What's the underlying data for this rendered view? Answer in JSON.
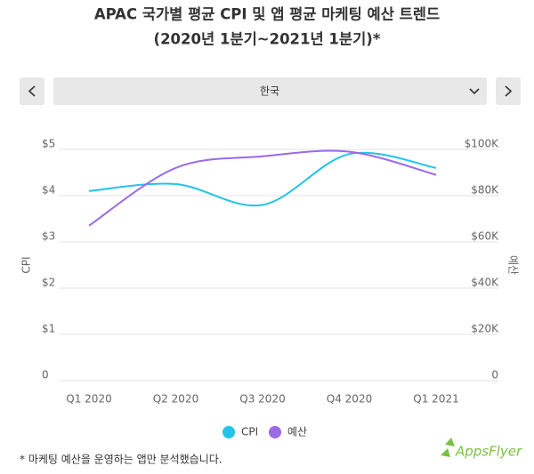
{
  "header": {
    "title": "APAC 국가별 평균 CPI 및 앱 평균 마케팅 예산 트렌드",
    "subtitle": "(2020년 1분기~2021년 1분기)*"
  },
  "selector": {
    "selected": "한국"
  },
  "chart_data": {
    "type": "line",
    "y_label": "CPI",
    "y2_label": "예산",
    "categories": [
      "Q1 2020",
      "Q2 2020",
      "Q3 2020",
      "Q4 2020",
      "Q1 2021"
    ],
    "series": [
      {
        "name": "CPI",
        "color": "#22c4e6",
        "values": [
          4.1,
          4.25,
          3.8,
          4.9,
          4.6
        ]
      },
      {
        "name": "예산",
        "color": "#9b6ae6",
        "axis": "y2",
        "values": [
          67000,
          92000,
          97000,
          99000,
          89000
        ]
      }
    ],
    "ylim": [
      0,
      5
    ],
    "yticks": [
      0,
      {
        "value": 1,
        "label": "$1"
      },
      {
        "value": 2,
        "label": "$2"
      },
      {
        "value": 3,
        "label": "$3"
      },
      {
        "value": 4,
        "label": "$4"
      },
      {
        "value": 5,
        "label": "$5"
      }
    ],
    "y2lim": [
      0,
      100000
    ],
    "y2ticks": [
      0,
      {
        "value": 20000,
        "label": "$20K"
      },
      {
        "value": 40000,
        "label": "$40K"
      },
      {
        "value": 60000,
        "label": "$60K"
      },
      {
        "value": 80000,
        "label": "$80K"
      },
      {
        "value": 100000,
        "label": "$100K"
      }
    ],
    "grid": true,
    "smooth": true
  },
  "footnote": "* 마케팅 예산을 운영하는 앱만 분석했습니다.",
  "logo": "AppsFlyer"
}
